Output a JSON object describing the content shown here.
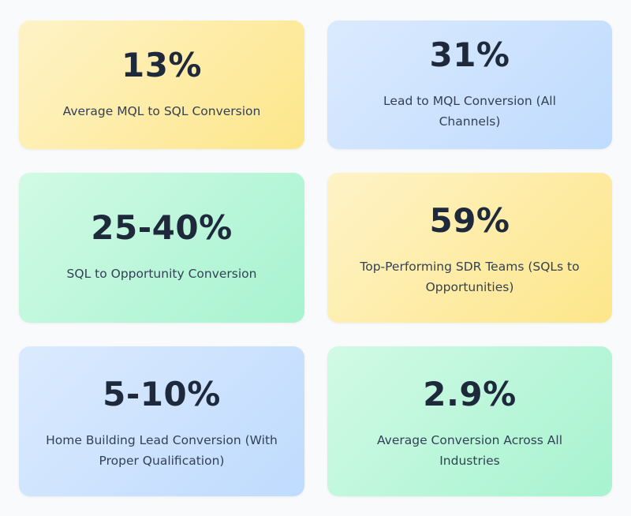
{
  "cards": [
    {
      "value": "13%",
      "label": "Average MQL to SQL Conversion",
      "color": "#fde68a"
    },
    {
      "value": "31%",
      "label": "Lead to MQL Conversion (All Channels)",
      "color": "#bfdbfe"
    },
    {
      "value": "25-40%",
      "label": "SQL to Opportunity Conversion",
      "color": "#a7f3d0"
    },
    {
      "value": "59%",
      "label": "Top-Performing SDR Teams (SQLs to Opportunities)",
      "color": "#fde68a"
    },
    {
      "value": "5-10%",
      "label": "Home Building Lead Conversion (With Proper Qualification)",
      "color": "#bfdbfe"
    },
    {
      "value": "2.9%",
      "label": "Average Conversion Across All Industries",
      "color": "#a7f3d0"
    }
  ]
}
